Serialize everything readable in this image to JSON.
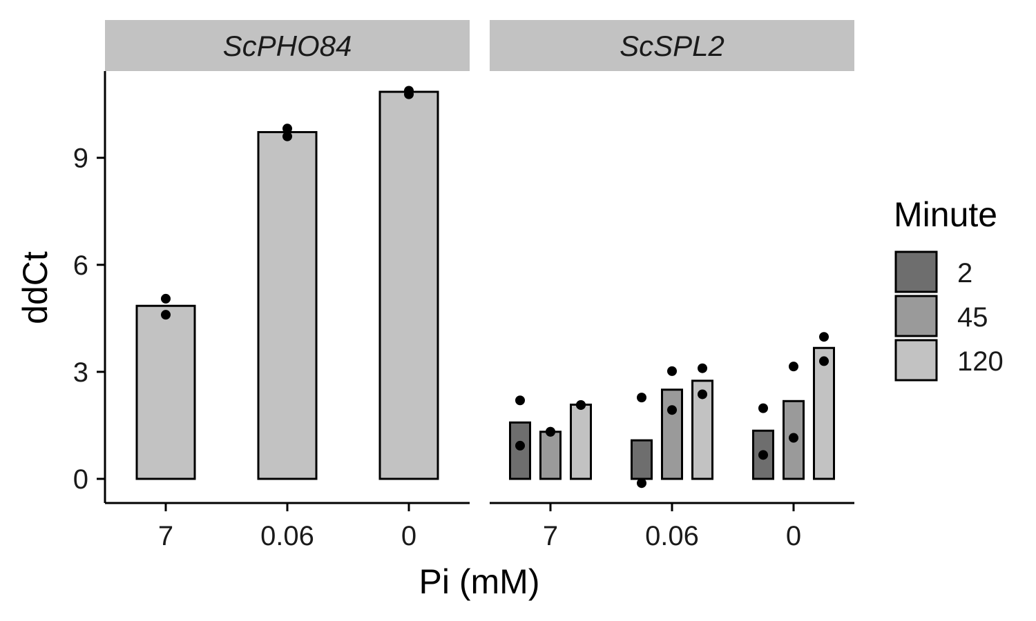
{
  "chart_data": {
    "type": "bar",
    "xlabel": "Pi (mM)",
    "ylabel": "ddCt",
    "ylim": [
      -0.7,
      11.3
    ],
    "yticks": [
      0,
      3,
      6,
      9
    ],
    "categories": [
      "7",
      "0.06",
      "0"
    ],
    "grid": false,
    "legend": {
      "title": "Minute",
      "position": "right",
      "entries": [
        {
          "label": "2",
          "color": "#6e6e6e"
        },
        {
          "label": "45",
          "color": "#9a9a9a"
        },
        {
          "label": "120",
          "color": "#c2c2c2"
        }
      ]
    },
    "panels": [
      {
        "strip": "ScPHO84",
        "series": [
          {
            "fill": "#c2c2c2",
            "values": [
              4.85,
              9.72,
              10.85
            ],
            "points": [
              [
                5.05,
                4.6
              ],
              [
                9.82,
                9.6
              ],
              [
                10.88,
                10.78
              ]
            ]
          }
        ]
      },
      {
        "strip": "ScSPL2",
        "series": [
          {
            "name": "2",
            "fill": "#6e6e6e",
            "values": [
              1.58,
              1.08,
              1.35
            ],
            "points": [
              [
                2.2,
                0.93
              ],
              [
                2.28,
                -0.12
              ],
              [
                1.98,
                0.67
              ]
            ]
          },
          {
            "name": "45",
            "fill": "#9a9a9a",
            "values": [
              1.32,
              2.5,
              2.18
            ],
            "points": [
              [
                1.32,
                1.32
              ],
              [
                3.02,
                1.93
              ],
              [
                3.15,
                1.15
              ]
            ]
          },
          {
            "name": "120",
            "fill": "#c2c2c2",
            "values": [
              2.08,
              2.75,
              3.67
            ],
            "points": [
              [
                2.07,
                2.07
              ],
              [
                3.1,
                2.37
              ],
              [
                3.98,
                3.3
              ]
            ]
          }
        ]
      }
    ]
  }
}
